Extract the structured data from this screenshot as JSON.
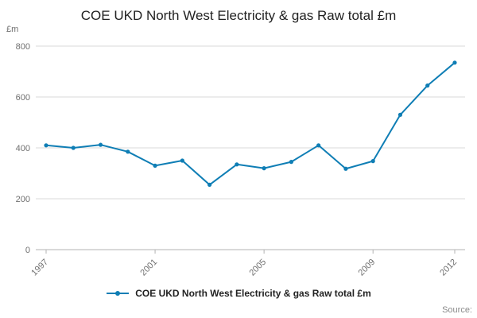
{
  "page": {
    "source_label": "Source:"
  },
  "legend": {
    "label": "COE UKD North West Electricity & gas Raw total £m",
    "marker_icon": "line-dot-marker"
  },
  "chart_data": {
    "type": "line",
    "title": "COE UKD North West Electricity & gas Raw total £m",
    "xlabel": "",
    "ylabel": "£m",
    "x": [
      1997,
      1998,
      1999,
      2000,
      2001,
      2002,
      2003,
      2004,
      2005,
      2006,
      2007,
      2008,
      2009,
      2010,
      2011,
      2012
    ],
    "series": [
      {
        "name": "COE UKD North West Electricity & gas Raw total £m",
        "values": [
          410,
          400,
          412,
          385,
          330,
          350,
          255,
          335,
          320,
          345,
          410,
          318,
          348,
          530,
          645,
          735
        ]
      }
    ],
    "ylim": [
      0,
      800
    ],
    "yticks": [
      0,
      200,
      400,
      600,
      800
    ],
    "xticks_shown": [
      1997,
      2001,
      2005,
      2009,
      2012
    ],
    "grid": true,
    "legend_position": "bottom",
    "line_color": "#0f7eb5",
    "grid_color": "#d9d9d9",
    "axis_color": "#b3b3b3",
    "tick_label_color": "#707070",
    "marker": "circle"
  }
}
